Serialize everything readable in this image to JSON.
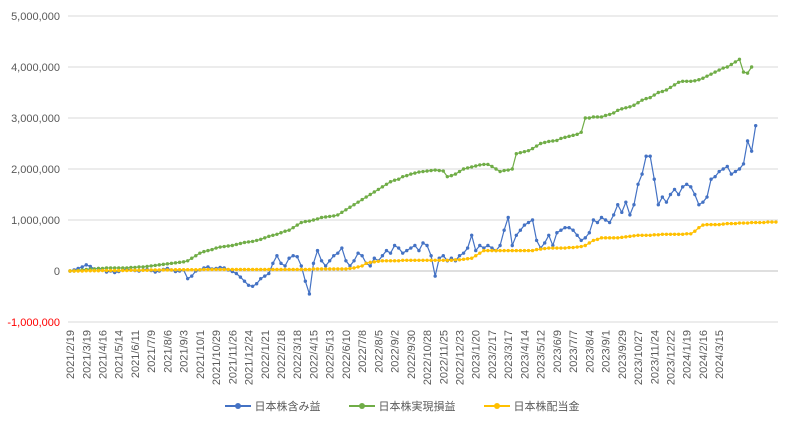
{
  "chart_data": {
    "type": "line",
    "title": "",
    "xlabel": "",
    "ylabel": "",
    "ylim": [
      -1000000,
      5000000
    ],
    "ytick_step": 1000000,
    "grid": true,
    "legend_position": "bottom",
    "y_tick_labels": [
      "-1,000,000",
      "0",
      "1,000,000",
      "2,000,000",
      "3,000,000",
      "4,000,000",
      "5,000,000"
    ],
    "negative_tick_color": "#FF0000",
    "x_tick_labels": [
      "2021/2/19",
      "2021/3/19",
      "2021/4/16",
      "2021/5/14",
      "2021/6/11",
      "2021/7/9",
      "2021/8/6",
      "2021/9/3",
      "2021/10/1",
      "2021/10/29",
      "2021/11/26",
      "2021/12/24",
      "2022/1/21",
      "2022/2/18",
      "2022/3/18",
      "2022/4/15",
      "2022/5/13",
      "2022/6/10",
      "2022/7/8",
      "2022/8/5",
      "2022/9/2",
      "2022/9/30",
      "2022/10/28",
      "2022/11/25",
      "2022/12/23",
      "2023/1/20",
      "2023/2/17",
      "2023/3/17",
      "2023/4/14",
      "2023/5/12",
      "2023/6/9",
      "2023/7/7",
      "2023/8/4",
      "2023/9/1",
      "2023/9/29",
      "2023/10/27",
      "2023/11/24",
      "2023/12/22",
      "2024/1/19",
      "2024/2/16",
      "2024/3/15"
    ],
    "weeks_per_tick": 4,
    "series": [
      {
        "name": "日本株含み益",
        "color": "#4472C4",
        "values": [
          0,
          20000,
          50000,
          80000,
          120000,
          90000,
          40000,
          50000,
          30000,
          -20000,
          0,
          -30000,
          -10000,
          20000,
          40000,
          20000,
          10000,
          0,
          20000,
          30000,
          10000,
          -20000,
          0,
          30000,
          50000,
          20000,
          -10000,
          0,
          20000,
          -150000,
          -100000,
          0,
          20000,
          60000,
          80000,
          40000,
          50000,
          70000,
          60000,
          20000,
          -10000,
          -50000,
          -120000,
          -200000,
          -280000,
          -300000,
          -250000,
          -150000,
          -100000,
          -50000,
          150000,
          300000,
          150000,
          100000,
          250000,
          300000,
          280000,
          100000,
          -200000,
          -450000,
          150000,
          400000,
          200000,
          100000,
          200000,
          300000,
          350000,
          450000,
          200000,
          100000,
          200000,
          350000,
          300000,
          150000,
          100000,
          250000,
          200000,
          300000,
          400000,
          350000,
          500000,
          450000,
          350000,
          400000,
          450000,
          500000,
          400000,
          550000,
          500000,
          300000,
          -100000,
          250000,
          300000,
          200000,
          250000,
          200000,
          300000,
          350000,
          450000,
          700000,
          400000,
          500000,
          450000,
          500000,
          450000,
          400000,
          500000,
          800000,
          1050000,
          500000,
          700000,
          800000,
          900000,
          950000,
          1000000,
          600000,
          450000,
          550000,
          700000,
          500000,
          750000,
          800000,
          850000,
          850000,
          800000,
          700000,
          600000,
          650000,
          750000,
          1000000,
          950000,
          1050000,
          1000000,
          950000,
          1100000,
          1300000,
          1150000,
          1350000,
          1100000,
          1300000,
          1700000,
          1900000,
          2250000,
          2250000,
          1800000,
          1300000,
          1450000,
          1350000,
          1500000,
          1600000,
          1500000,
          1650000,
          1700000,
          1650000,
          1500000,
          1300000,
          1350000,
          1450000,
          1800000,
          1850000,
          1950000,
          2000000,
          2050000,
          1900000,
          1950000,
          2000000,
          2100000,
          2550000,
          2350000,
          2850000
        ]
      },
      {
        "name": "日本株実現損益",
        "color": "#70AD47",
        "values": [
          0,
          0,
          10000,
          20000,
          30000,
          40000,
          40000,
          50000,
          50000,
          60000,
          60000,
          60000,
          60000,
          60000,
          60000,
          70000,
          70000,
          80000,
          80000,
          90000,
          100000,
          110000,
          120000,
          130000,
          140000,
          150000,
          160000,
          170000,
          180000,
          200000,
          250000,
          300000,
          350000,
          380000,
          400000,
          420000,
          450000,
          470000,
          480000,
          490000,
          500000,
          520000,
          540000,
          560000,
          570000,
          580000,
          600000,
          620000,
          650000,
          680000,
          700000,
          720000,
          750000,
          780000,
          800000,
          850000,
          900000,
          950000,
          970000,
          980000,
          1000000,
          1020000,
          1050000,
          1060000,
          1070000,
          1080000,
          1100000,
          1150000,
          1200000,
          1250000,
          1300000,
          1350000,
          1400000,
          1450000,
          1500000,
          1550000,
          1600000,
          1650000,
          1700000,
          1750000,
          1780000,
          1800000,
          1850000,
          1870000,
          1900000,
          1920000,
          1940000,
          1950000,
          1960000,
          1970000,
          1980000,
          1970000,
          1960000,
          1850000,
          1870000,
          1900000,
          1950000,
          2000000,
          2020000,
          2040000,
          2060000,
          2080000,
          2090000,
          2090000,
          2050000,
          2000000,
          1950000,
          1970000,
          1980000,
          2000000,
          2300000,
          2320000,
          2340000,
          2360000,
          2400000,
          2450000,
          2500000,
          2520000,
          2540000,
          2550000,
          2560000,
          2600000,
          2620000,
          2640000,
          2660000,
          2680000,
          2720000,
          3000000,
          3000000,
          3020000,
          3020000,
          3020000,
          3050000,
          3070000,
          3100000,
          3150000,
          3180000,
          3200000,
          3220000,
          3250000,
          3300000,
          3350000,
          3380000,
          3400000,
          3450000,
          3500000,
          3520000,
          3550000,
          3600000,
          3650000,
          3700000,
          3720000,
          3720000,
          3720000,
          3730000,
          3750000,
          3780000,
          3820000,
          3860000,
          3900000,
          3940000,
          3980000,
          4000000,
          4050000,
          4100000,
          4150000,
          3900000,
          3880000,
          4000000
        ]
      },
      {
        "name": "日本株配当金",
        "color": "#FFC000",
        "values": [
          0,
          0,
          0,
          0,
          5000,
          5000,
          5000,
          5000,
          10000,
          10000,
          10000,
          10000,
          10000,
          10000,
          10000,
          15000,
          15000,
          15000,
          15000,
          15000,
          20000,
          20000,
          20000,
          20000,
          20000,
          20000,
          25000,
          25000,
          25000,
          25000,
          25000,
          25000,
          25000,
          30000,
          30000,
          30000,
          30000,
          30000,
          30000,
          30000,
          30000,
          30000,
          30000,
          30000,
          30000,
          30000,
          30000,
          30000,
          30000,
          30000,
          30000,
          30000,
          30000,
          30000,
          30000,
          30000,
          30000,
          30000,
          30000,
          30000,
          40000,
          40000,
          40000,
          40000,
          40000,
          40000,
          40000,
          40000,
          40000,
          50000,
          60000,
          80000,
          100000,
          150000,
          170000,
          180000,
          190000,
          200000,
          200000,
          200000,
          200000,
          200000,
          210000,
          210000,
          210000,
          210000,
          210000,
          210000,
          210000,
          210000,
          210000,
          210000,
          210000,
          210000,
          210000,
          220000,
          220000,
          230000,
          240000,
          250000,
          300000,
          350000,
          400000,
          400000,
          400000,
          400000,
          400000,
          400000,
          400000,
          400000,
          400000,
          400000,
          400000,
          400000,
          400000,
          420000,
          430000,
          440000,
          450000,
          450000,
          450000,
          450000,
          450000,
          460000,
          460000,
          470000,
          480000,
          500000,
          550000,
          600000,
          620000,
          650000,
          650000,
          650000,
          650000,
          650000,
          660000,
          670000,
          680000,
          690000,
          700000,
          700000,
          700000,
          700000,
          710000,
          710000,
          720000,
          720000,
          720000,
          720000,
          720000,
          720000,
          730000,
          730000,
          780000,
          850000,
          900000,
          910000,
          910000,
          910000,
          910000,
          920000,
          930000,
          930000,
          930000,
          940000,
          940000,
          940000,
          950000,
          950000,
          950000,
          950000,
          960000,
          960000,
          960000
        ]
      }
    ]
  }
}
